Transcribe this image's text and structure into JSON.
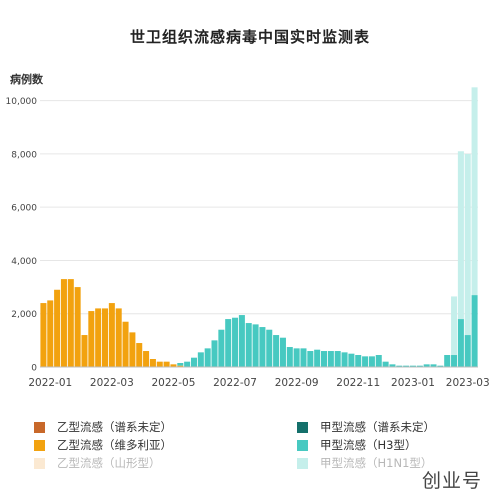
{
  "chart_data": {
    "type": "bar",
    "stacked": true,
    "title": "世卫组织流感病毒中国实时监测表",
    "ylabel": "病例数",
    "xlabel": "",
    "ylim": [
      0,
      10700
    ],
    "yticks": [
      0,
      2000,
      4000,
      6000,
      8000,
      10000
    ],
    "ytick_labels": [
      "0",
      "2,000",
      "4,000",
      "6,000",
      "8,000",
      "10,000"
    ],
    "grid": "horizontal",
    "weeks_total": 64,
    "xtick_labels": [
      {
        "label": "2022-01",
        "week": 1
      },
      {
        "label": "2022-03",
        "week": 10
      },
      {
        "label": "2022-05",
        "week": 19
      },
      {
        "label": "2022-07",
        "week": 28
      },
      {
        "label": "2022-09",
        "week": 37
      },
      {
        "label": "2022-11",
        "week": 46
      },
      {
        "label": "2023-01",
        "week": 54
      },
      {
        "label": "2023-03",
        "week": 62
      }
    ],
    "series": [
      {
        "name": "乙型流感（谱系未定）",
        "color": "#c8682a",
        "values": [
          0,
          0,
          0,
          0,
          0,
          0,
          0,
          0,
          0,
          0,
          0,
          0,
          0,
          0,
          0,
          0,
          0,
          0,
          0,
          0,
          0,
          0,
          0,
          0,
          0,
          0,
          0,
          0,
          0,
          0,
          0,
          0,
          0,
          0,
          0,
          0,
          0,
          0,
          0,
          0,
          0,
          0,
          0,
          0,
          0,
          0,
          0,
          0,
          0,
          0,
          0,
          0,
          0,
          0,
          0,
          0,
          0,
          0,
          0,
          0,
          0,
          0,
          0,
          0
        ]
      },
      {
        "name": "乙型流感（维多利亚）",
        "color": "#f2a20f",
        "values": [
          2400,
          2500,
          2900,
          3300,
          3300,
          3000,
          1200,
          2100,
          2200,
          2200,
          2400,
          2200,
          1700,
          1300,
          900,
          600,
          300,
          200,
          200,
          100,
          50,
          0,
          0,
          0,
          0,
          0,
          0,
          0,
          0,
          0,
          0,
          0,
          0,
          0,
          0,
          0,
          0,
          0,
          0,
          0,
          0,
          0,
          0,
          0,
          0,
          0,
          0,
          0,
          0,
          0,
          0,
          0,
          0,
          0,
          0,
          0,
          0,
          0,
          0,
          0,
          0,
          0,
          0,
          0
        ]
      },
      {
        "name": "乙型流感（山形型）",
        "color": "#fbe9d2",
        "values": [
          0,
          0,
          0,
          0,
          0,
          0,
          0,
          0,
          0,
          0,
          0,
          0,
          0,
          0,
          0,
          0,
          0,
          0,
          0,
          0,
          0,
          0,
          0,
          0,
          0,
          0,
          0,
          0,
          0,
          0,
          0,
          0,
          0,
          0,
          0,
          0,
          0,
          0,
          0,
          0,
          0,
          0,
          0,
          0,
          0,
          0,
          0,
          0,
          0,
          0,
          0,
          0,
          0,
          0,
          0,
          0,
          0,
          0,
          0,
          0,
          0,
          0,
          0,
          0
        ]
      },
      {
        "name": "甲型流感（谱系未定）",
        "color": "#14706b",
        "values": [
          0,
          0,
          0,
          0,
          0,
          0,
          0,
          0,
          0,
          0,
          0,
          0,
          0,
          0,
          0,
          0,
          0,
          0,
          0,
          0,
          0,
          0,
          0,
          0,
          0,
          0,
          0,
          0,
          0,
          0,
          0,
          0,
          0,
          0,
          0,
          0,
          0,
          0,
          0,
          0,
          0,
          0,
          0,
          0,
          0,
          0,
          0,
          0,
          0,
          0,
          0,
          0,
          0,
          0,
          0,
          0,
          0,
          0,
          0,
          0,
          0,
          0,
          0,
          0
        ]
      },
      {
        "name": "甲型流感（H3型）",
        "color": "#47c9c1",
        "values": [
          0,
          0,
          0,
          0,
          0,
          0,
          0,
          0,
          0,
          0,
          0,
          0,
          0,
          0,
          0,
          0,
          0,
          0,
          0,
          0,
          100,
          200,
          350,
          550,
          700,
          1000,
          1400,
          1800,
          1850,
          1950,
          1650,
          1600,
          1500,
          1400,
          1200,
          1100,
          750,
          700,
          700,
          600,
          650,
          600,
          600,
          600,
          550,
          500,
          450,
          400,
          400,
          450,
          200,
          100,
          50,
          50,
          50,
          50,
          100,
          100,
          50,
          450,
          450,
          1800,
          1200,
          2700
        ]
      },
      {
        "name": "甲型流感（H1N1型）",
        "color": "#c5efeb",
        "values": [
          0,
          0,
          0,
          0,
          0,
          0,
          0,
          0,
          0,
          0,
          0,
          0,
          0,
          0,
          0,
          0,
          0,
          0,
          0,
          0,
          0,
          0,
          0,
          0,
          0,
          0,
          0,
          0,
          0,
          0,
          0,
          0,
          0,
          0,
          0,
          0,
          0,
          0,
          0,
          0,
          0,
          0,
          0,
          0,
          0,
          0,
          0,
          0,
          0,
          0,
          0,
          0,
          0,
          0,
          0,
          0,
          0,
          0,
          0,
          0,
          2200,
          6300,
          6800,
          7800
        ]
      }
    ]
  },
  "legend_layout": [
    {
      "series": 0,
      "col": 0,
      "row": 0,
      "faded": false
    },
    {
      "series": 1,
      "col": 0,
      "row": 1,
      "faded": false
    },
    {
      "series": 2,
      "col": 0,
      "row": 2,
      "faded": true
    },
    {
      "series": 3,
      "col": 1,
      "row": 0,
      "faded": false
    },
    {
      "series": 4,
      "col": 1,
      "row": 1,
      "faded": false
    },
    {
      "series": 5,
      "col": 1,
      "row": 2,
      "faded": true
    }
  ],
  "watermark": "创业号"
}
